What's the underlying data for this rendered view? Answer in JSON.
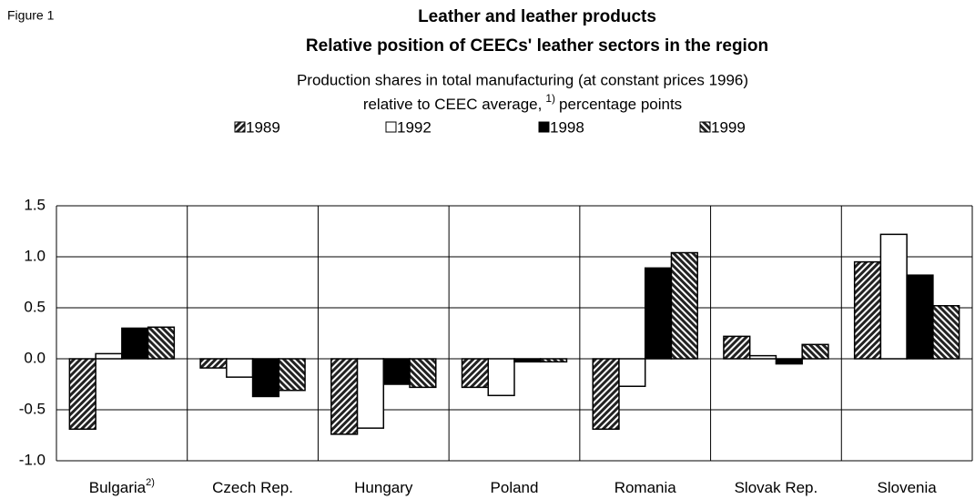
{
  "figure_label": "Figure 1",
  "chart_data": {
    "type": "bar",
    "title": "Leather and leather products",
    "subtitle": "Relative position of CEECs' leather sectors in the region",
    "description_line1": "Production shares in total manufacturing (at constant prices 1996)",
    "description_line2": "relative to CEEC average,",
    "description_note": "1)",
    "description_line2_end": "percentage points",
    "categories": [
      "Bulgaria",
      "Czech Rep.",
      "Hungary",
      "Poland",
      "Romania",
      "Slovak Rep.",
      "Slovenia"
    ],
    "bulgaria_note": "2)",
    "series": [
      {
        "name": "1989",
        "color": "#222222",
        "pattern": "hatch-forward",
        "values": [
          -0.69,
          -0.09,
          -0.74,
          -0.28,
          -0.69,
          0.22,
          0.95
        ]
      },
      {
        "name": "1992",
        "color": "#ffffff",
        "pattern": "solid",
        "values": [
          0.05,
          -0.18,
          -0.68,
          -0.36,
          -0.27,
          0.03,
          1.22
        ]
      },
      {
        "name": "1998",
        "color": "#000000",
        "pattern": "solid",
        "values": [
          0.3,
          -0.37,
          -0.25,
          -0.03,
          0.89,
          -0.05,
          0.82
        ]
      },
      {
        "name": "1999",
        "color": "#222222",
        "pattern": "hatch-back",
        "values": [
          0.31,
          -0.31,
          -0.28,
          -0.03,
          1.04,
          0.14,
          0.52
        ]
      }
    ],
    "ylim": [
      -1.0,
      1.5
    ],
    "yticks": [
      {
        "value": -1.0,
        "label": "-1.0"
      },
      -0.5,
      {
        "value": 0.0,
        "label": "0.0"
      },
      0.5,
      {
        "value": 1.0,
        "label": "1.0"
      },
      1.5
    ],
    "grid": true
  }
}
